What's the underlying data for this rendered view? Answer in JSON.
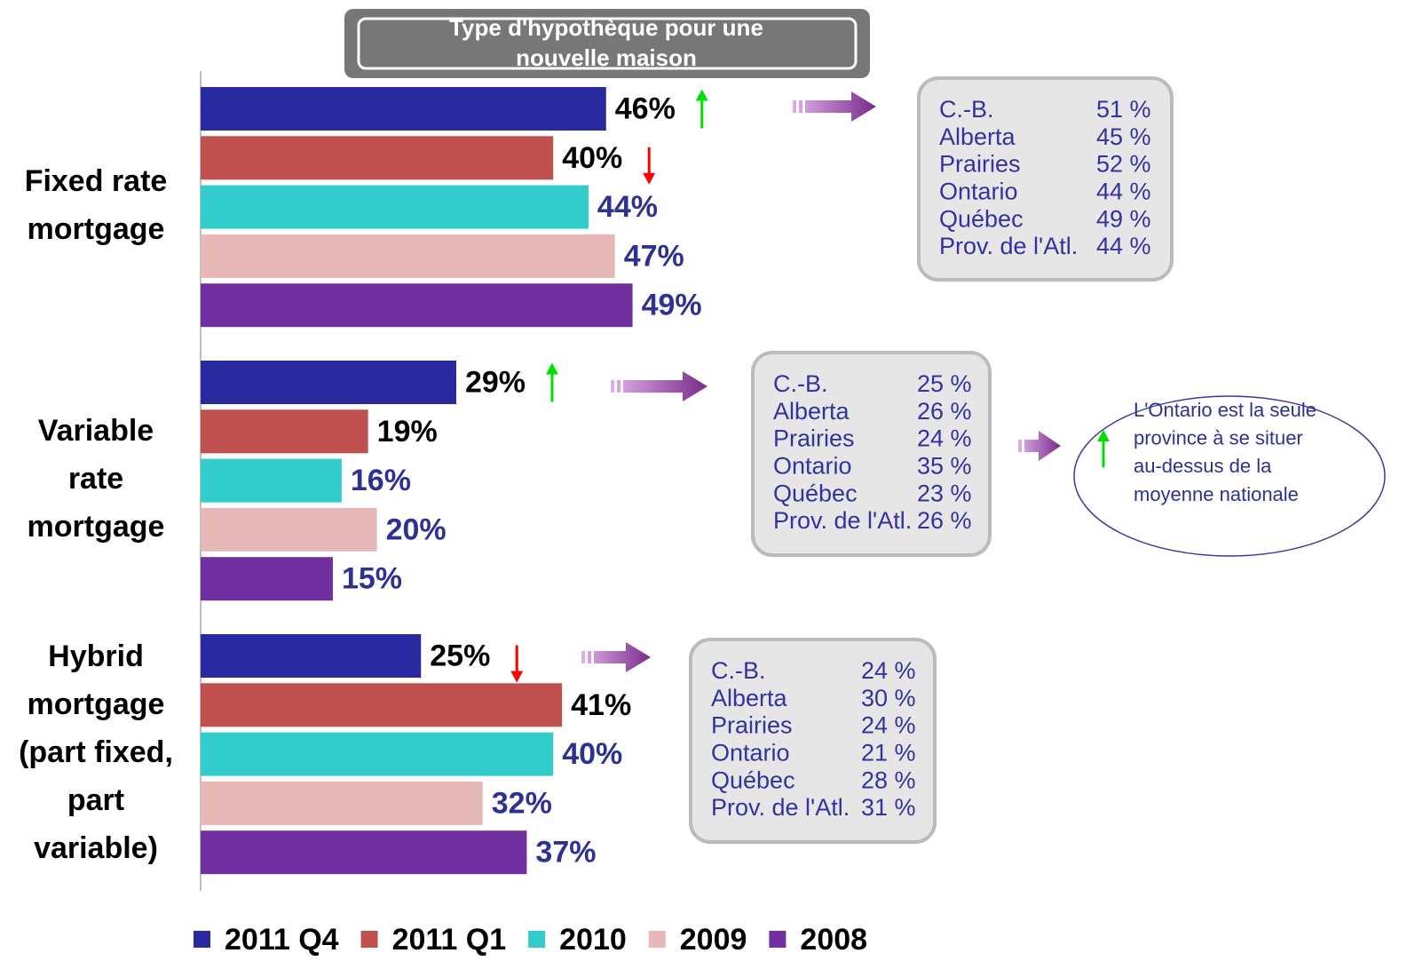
{
  "chart_data": {
    "type": "bar",
    "orientation": "horizontal",
    "title": [
      "Type d'hypothèque pour une",
      "nouvelle maison"
    ],
    "categories": [
      [
        "Fixed rate",
        "mortgage"
      ],
      [
        "Variable",
        "rate",
        "mortgage"
      ],
      [
        "Hybrid",
        "mortgage",
        "(part fixed,",
        "part",
        "variable)"
      ]
    ],
    "series": [
      {
        "name": "2011 Q4",
        "color": "#2a2aa0",
        "label_color": "#000000",
        "values": [
          46,
          29,
          25
        ],
        "value_labels": [
          "46%",
          "29%",
          "25%"
        ]
      },
      {
        "name": "2011 Q1",
        "color": "#c0504d",
        "label_color": "#000000",
        "values": [
          40,
          19,
          41
        ],
        "value_labels": [
          "40%",
          "19%",
          "41%"
        ]
      },
      {
        "name": "2010",
        "color": "#33cccc",
        "label_color": "#2e3192",
        "values": [
          44,
          16,
          40
        ],
        "value_labels": [
          "44%",
          "16%",
          "40%"
        ]
      },
      {
        "name": "2009",
        "color": "#e6b9b8",
        "label_color": "#2e3192",
        "values": [
          47,
          20,
          32
        ],
        "value_labels": [
          "47%",
          "20%",
          "32%"
        ]
      },
      {
        "name": "2008",
        "color": "#7030a0",
        "label_color": "#2e3192",
        "values": [
          49,
          15,
          37
        ],
        "value_labels": [
          "49%",
          "15%",
          "37%"
        ]
      }
    ],
    "trend_arrows": [
      {
        "category": 0,
        "series": 0,
        "direction": "up"
      },
      {
        "category": 0,
        "series": 1,
        "direction": "down"
      },
      {
        "category": 1,
        "series": 0,
        "direction": "up"
      },
      {
        "category": 2,
        "series": 0,
        "direction": "down"
      }
    ],
    "regional": [
      [
        [
          "C.-B.",
          "51 %"
        ],
        [
          "Alberta",
          "45 %"
        ],
        [
          "Prairies",
          "52 %"
        ],
        [
          "Ontario",
          "44 %"
        ],
        [
          "Québec",
          "49 %"
        ],
        [
          "Prov. de l'Atl.",
          "44 %"
        ]
      ],
      [
        [
          "C.-B.",
          "25 %"
        ],
        [
          "Alberta",
          "26 %"
        ],
        [
          "Prairies",
          "24 %"
        ],
        [
          "Ontario",
          "35 %"
        ],
        [
          "Québec",
          "23 %"
        ],
        [
          "Prov. de l'Atl.",
          "26 %"
        ]
      ],
      [
        [
          "C.-B.",
          "24 %"
        ],
        [
          "Alberta",
          "30 %"
        ],
        [
          "Prairies",
          "24 %"
        ],
        [
          "Ontario",
          "21 %"
        ],
        [
          "Québec",
          "28 %"
        ],
        [
          "Prov. de l'Atl.",
          "31 %"
        ]
      ]
    ],
    "note": [
      "L'Ontario est la seule",
      "province à se situer",
      "au-dessus de la",
      "moyenne nationale"
    ],
    "legend": "bottom"
  }
}
